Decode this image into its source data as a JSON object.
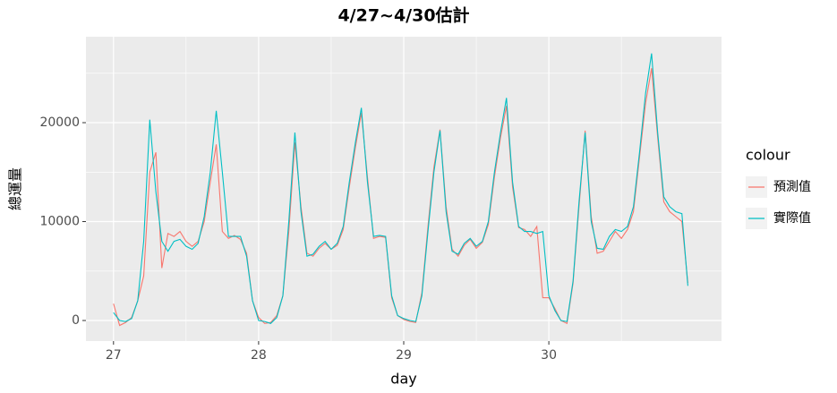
{
  "chart_data": {
    "type": "line",
    "title": "4/27~4/30估計",
    "xlabel": "day",
    "ylabel": "總運量",
    "legend_title": "colour",
    "legend": "right",
    "grid": true,
    "x": [
      27,
      27.042,
      27.083,
      27.125,
      27.167,
      27.208,
      27.25,
      27.292,
      27.333,
      27.375,
      27.417,
      27.458,
      27.5,
      27.542,
      27.583,
      27.625,
      27.667,
      27.708,
      27.75,
      27.792,
      27.833,
      27.875,
      27.917,
      27.958,
      28,
      28.042,
      28.083,
      28.125,
      28.167,
      28.208,
      28.25,
      28.292,
      28.333,
      28.375,
      28.417,
      28.458,
      28.5,
      28.542,
      28.583,
      28.625,
      28.667,
      28.708,
      28.75,
      28.792,
      28.833,
      28.875,
      28.917,
      28.958,
      29,
      29.042,
      29.083,
      29.125,
      29.167,
      29.208,
      29.25,
      29.292,
      29.333,
      29.375,
      29.417,
      29.458,
      29.5,
      29.542,
      29.583,
      29.625,
      29.667,
      29.708,
      29.75,
      29.792,
      29.833,
      29.875,
      29.917,
      29.958,
      30,
      30.042,
      30.083,
      30.125,
      30.167,
      30.208,
      30.25,
      30.292,
      30.333,
      30.375,
      30.417,
      30.458,
      30.5,
      30.542,
      30.583,
      30.625,
      30.667,
      30.708,
      30.75,
      30.792,
      30.833,
      30.875,
      30.917,
      30.958
    ],
    "series": [
      {
        "name": "預測值",
        "color": "#F8766D",
        "values": [
          1700,
          -500,
          -200,
          300,
          2000,
          4500,
          15000,
          17000,
          5300,
          8800,
          8500,
          9000,
          8000,
          7500,
          8000,
          10000,
          14000,
          17800,
          9000,
          8300,
          8600,
          8200,
          6800,
          2000,
          300,
          -300,
          -200,
          500,
          2500,
          9000,
          18000,
          11500,
          6800,
          6500,
          7300,
          7800,
          7200,
          7600,
          9200,
          13500,
          17500,
          21000,
          14500,
          8300,
          8500,
          8400,
          2300,
          500,
          100,
          -100,
          -200,
          2800,
          9500,
          15500,
          19300,
          11500,
          7200,
          6500,
          7600,
          8200,
          7300,
          7900,
          9700,
          14500,
          18500,
          21700,
          13500,
          9400,
          9200,
          8500,
          9500,
          2300,
          2300,
          1200,
          0,
          -300,
          3800,
          11500,
          19200,
          10500,
          6800,
          7000,
          8000,
          9000,
          8300,
          9200,
          11000,
          16500,
          22000,
          25500,
          18500,
          12000,
          11000,
          10500,
          10000,
          3800
        ]
      },
      {
        "name": "實際值",
        "color": "#00BFC4",
        "values": [
          800,
          0,
          -100,
          200,
          2000,
          8000,
          20300,
          13000,
          8000,
          7000,
          8000,
          8200,
          7500,
          7200,
          7800,
          10500,
          15000,
          21200,
          15000,
          8500,
          8500,
          8500,
          6500,
          2000,
          0,
          -100,
          -300,
          300,
          2500,
          10000,
          19000,
          11000,
          6500,
          6700,
          7500,
          8000,
          7200,
          7800,
          9500,
          14000,
          18000,
          21500,
          14000,
          8500,
          8600,
          8500,
          2500,
          500,
          200,
          0,
          -100,
          2500,
          9000,
          15000,
          19200,
          11000,
          7000,
          6700,
          7800,
          8300,
          7500,
          8000,
          10000,
          15000,
          19000,
          22500,
          14000,
          9500,
          9000,
          9000,
          8800,
          9000,
          2500,
          1000,
          0,
          -100,
          4000,
          12000,
          19000,
          10000,
          7300,
          7200,
          8500,
          9200,
          9000,
          9500,
          11500,
          17000,
          23000,
          27000,
          19000,
          12500,
          11500,
          11000,
          10800,
          3500
        ]
      }
    ],
    "xlim": [
      26.81,
      31.19
    ],
    "xticks": [
      27,
      28,
      29,
      30
    ],
    "xminor": [
      27.5,
      28.5,
      29.5,
      30.5
    ],
    "ylim": [
      -2080,
      28690
    ],
    "yticks": [
      0,
      10000,
      20000
    ],
    "yminor": [
      5000,
      15000,
      25000
    ]
  }
}
